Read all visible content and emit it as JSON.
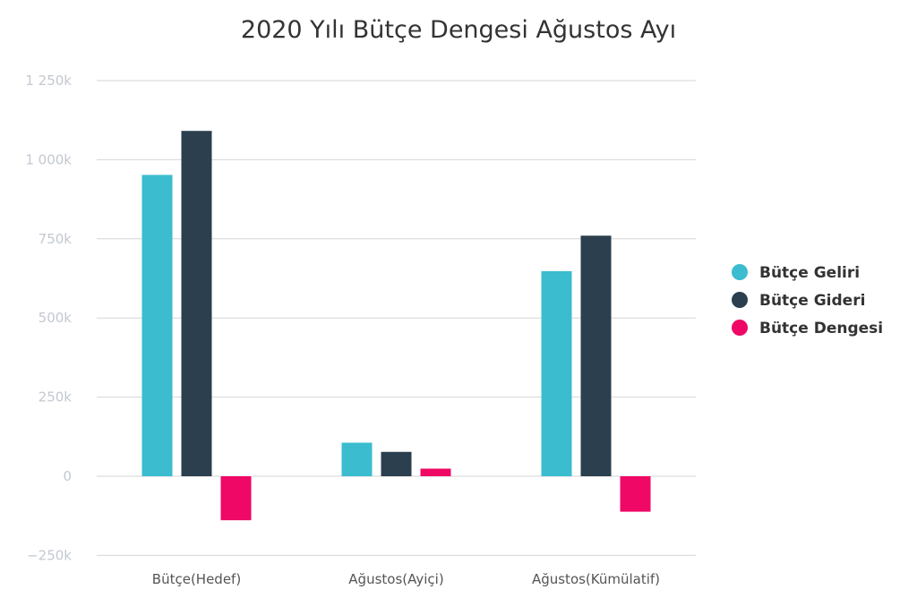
{
  "chart_data": {
    "type": "bar",
    "title": "2020 Yılı Bütçe Dengesi Ağustos Ayı",
    "categories": [
      "Bütçe(Hedef)",
      "Ağustos(Ayiçi)",
      "Ağustos(Kümülatif)"
    ],
    "series": [
      {
        "name": "Bütçe Geliri",
        "color": "#3bbccf",
        "values": [
          952000,
          106000,
          648000
        ]
      },
      {
        "name": "Bütçe Gideri",
        "color": "#2b3f4e",
        "values": [
          1091000,
          77000,
          760000
        ]
      },
      {
        "name": "Bütçe Dengesi",
        "color": "#ef0865",
        "values": [
          -139000,
          24000,
          -112000
        ]
      }
    ],
    "ylim": [
      -250000,
      1250000
    ],
    "yticks": [
      -250000,
      0,
      250000,
      500000,
      750000,
      1000000,
      1250000
    ],
    "ytick_labels": [
      "−250k",
      "0",
      "250k",
      "500k",
      "750k",
      "1 000k",
      "1 250k"
    ],
    "grid": true,
    "legend_position": "right"
  }
}
